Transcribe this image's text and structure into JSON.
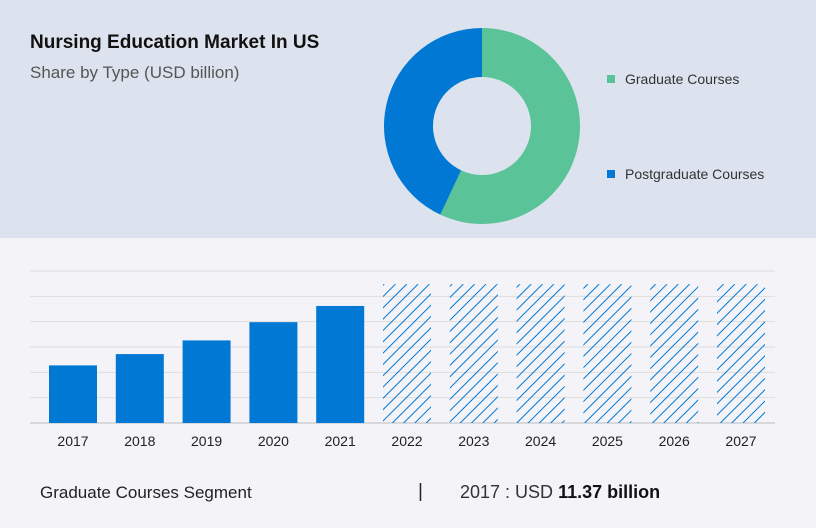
{
  "title": "Nursing Education Market In US",
  "subtitle": "Share by Type (USD billion)",
  "colors": {
    "graduate": "#5bc398",
    "postgraduate": "#0078d4",
    "bar": "#0078d4",
    "top_panel": "#dde3ee",
    "bottom_panel": "#f4f4f8"
  },
  "chart_data": [
    {
      "type": "pie",
      "donut": true,
      "legend_position": "right",
      "slices": [
        {
          "label": "Graduate Courses",
          "value": 57
        },
        {
          "label": "Postgraduate Courses",
          "value": 43
        }
      ]
    },
    {
      "type": "bar",
      "categories": [
        "2017",
        "2018",
        "2019",
        "2020",
        "2021",
        "2022",
        "2023",
        "2024",
        "2025",
        "2026",
        "2027"
      ],
      "values": [
        11.37,
        13.6,
        16.3,
        19.9,
        23.1,
        null,
        null,
        null,
        null,
        null,
        null
      ],
      "forecast_placeholder_value": 27.4,
      "forecast_years": [
        "2022",
        "2023",
        "2024",
        "2025",
        "2026",
        "2027"
      ],
      "ylim": [
        0,
        30
      ],
      "grid": true,
      "xlabel": "",
      "ylabel": ""
    }
  ],
  "footer": {
    "segment": "Graduate Courses Segment",
    "separator": "|",
    "year_prefix": "2017 : USD ",
    "value_text": "11.37 billion"
  }
}
